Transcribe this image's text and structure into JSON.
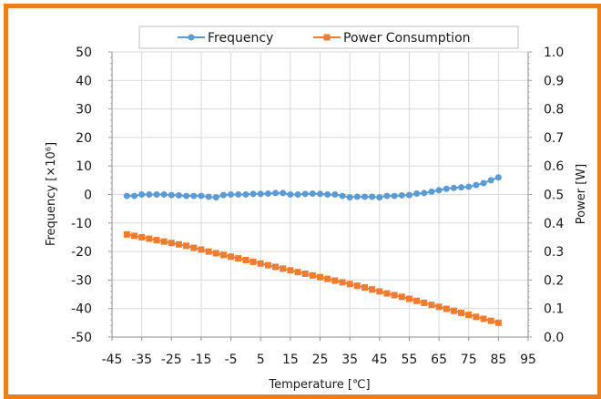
{
  "chart_data": {
    "type": "line",
    "xlabel": "Temperature [℃]",
    "ylabel": "Frequency [×10⁶]",
    "y2label": "Power [W]",
    "xlim": [
      -45,
      95
    ],
    "xticks": [
      -45,
      -35,
      -25,
      -15,
      -5,
      5,
      15,
      25,
      35,
      45,
      55,
      65,
      75,
      85,
      95
    ],
    "ylim": [
      -50,
      50
    ],
    "yticks": [
      -50,
      -40,
      -30,
      -20,
      -10,
      0,
      10,
      20,
      30,
      40,
      50
    ],
    "y2lim": [
      0.0,
      1.0
    ],
    "y2ticks": [
      0.0,
      0.1,
      0.2,
      0.3,
      0.4,
      0.5,
      0.6,
      0.7,
      0.8,
      0.9,
      1.0
    ],
    "y2tick_labels": [
      "0.0",
      "0.1",
      "0.2",
      "0.3",
      "0.4",
      "0.5",
      "0.6",
      "0.7",
      "0.8",
      "0.9",
      "1.0"
    ],
    "grid": true,
    "legend_position": "top",
    "series": [
      {
        "name": "Frequency",
        "axis": "left",
        "marker": "circle",
        "color": "#5b9bd5",
        "x": [
          -40,
          -37.5,
          -35,
          -32.5,
          -30,
          -27.5,
          -25,
          -22.5,
          -20,
          -17.5,
          -15,
          -12.5,
          -10,
          -7.5,
          -5,
          -2.5,
          0,
          2.5,
          5,
          7.5,
          10,
          12.5,
          15,
          17.5,
          20,
          22.5,
          25,
          27.5,
          30,
          32.5,
          35,
          37.5,
          40,
          42.5,
          45,
          47.5,
          50,
          52.5,
          55,
          57.5,
          60,
          62.5,
          65,
          67.5,
          70,
          72.5,
          75,
          77.5,
          80,
          82.5,
          85
        ],
        "y": [
          -0.5,
          -0.5,
          0,
          0,
          0,
          0,
          -0.2,
          -0.3,
          -0.5,
          -0.5,
          -0.5,
          -0.8,
          -1,
          -0.2,
          0,
          0,
          0,
          0.2,
          0.2,
          0.3,
          0.5,
          0.5,
          0,
          0,
          0.2,
          0.3,
          0.2,
          0,
          0,
          -0.5,
          -1,
          -0.8,
          -0.8,
          -0.8,
          -1,
          -0.5,
          -0.5,
          -0.3,
          -0.2,
          0.3,
          0.5,
          1,
          1.5,
          2,
          2.3,
          2.5,
          2.7,
          3.3,
          4,
          5,
          6
        ]
      },
      {
        "name": "Power Consumption",
        "axis": "right",
        "marker": "square",
        "color": "#ed7d31",
        "x": [
          -40,
          -37.5,
          -35,
          -32.5,
          -30,
          -27.5,
          -25,
          -22.5,
          -20,
          -17.5,
          -15,
          -12.5,
          -10,
          -7.5,
          -5,
          -2.5,
          0,
          2.5,
          5,
          7.5,
          10,
          12.5,
          15,
          17.5,
          20,
          22.5,
          25,
          27.5,
          30,
          32.5,
          35,
          37.5,
          40,
          42.5,
          45,
          47.5,
          50,
          52.5,
          55,
          57.5,
          60,
          62.5,
          65,
          67.5,
          70,
          72.5,
          75,
          77.5,
          80,
          82.5,
          85
        ],
        "y": [
          0.36,
          0.355,
          0.35,
          0.345,
          0.34,
          0.335,
          0.33,
          0.325,
          0.32,
          0.313,
          0.307,
          0.3,
          0.294,
          0.288,
          0.282,
          0.276,
          0.27,
          0.264,
          0.258,
          0.252,
          0.246,
          0.24,
          0.234,
          0.228,
          0.222,
          0.216,
          0.21,
          0.204,
          0.198,
          0.192,
          0.186,
          0.18,
          0.174,
          0.167,
          0.16,
          0.153,
          0.147,
          0.141,
          0.134,
          0.127,
          0.12,
          0.113,
          0.106,
          0.099,
          0.092,
          0.085,
          0.078,
          0.071,
          0.064,
          0.057,
          0.05
        ]
      }
    ]
  }
}
